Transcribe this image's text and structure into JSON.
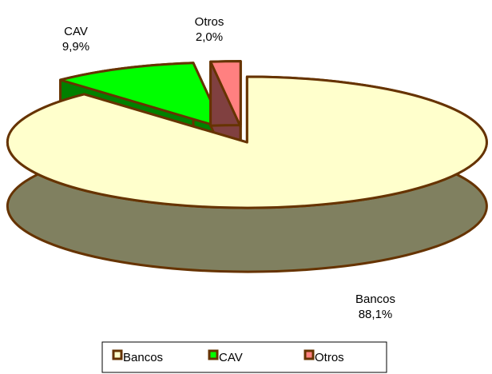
{
  "chart_data": {
    "type": "pie3d",
    "categories": [
      "Bancos",
      "CAV",
      "Otros"
    ],
    "values": [
      88.1,
      9.9,
      2.0
    ],
    "value_labels": [
      "88,1%",
      "9,9%",
      "2,0%"
    ],
    "colors": [
      "#FFFFCC",
      "#00FF00",
      "#FF8080"
    ],
    "side_colors": [
      "#808060",
      "#008000",
      "#804040"
    ],
    "edge_color": "#663300",
    "legend": "bottom"
  }
}
